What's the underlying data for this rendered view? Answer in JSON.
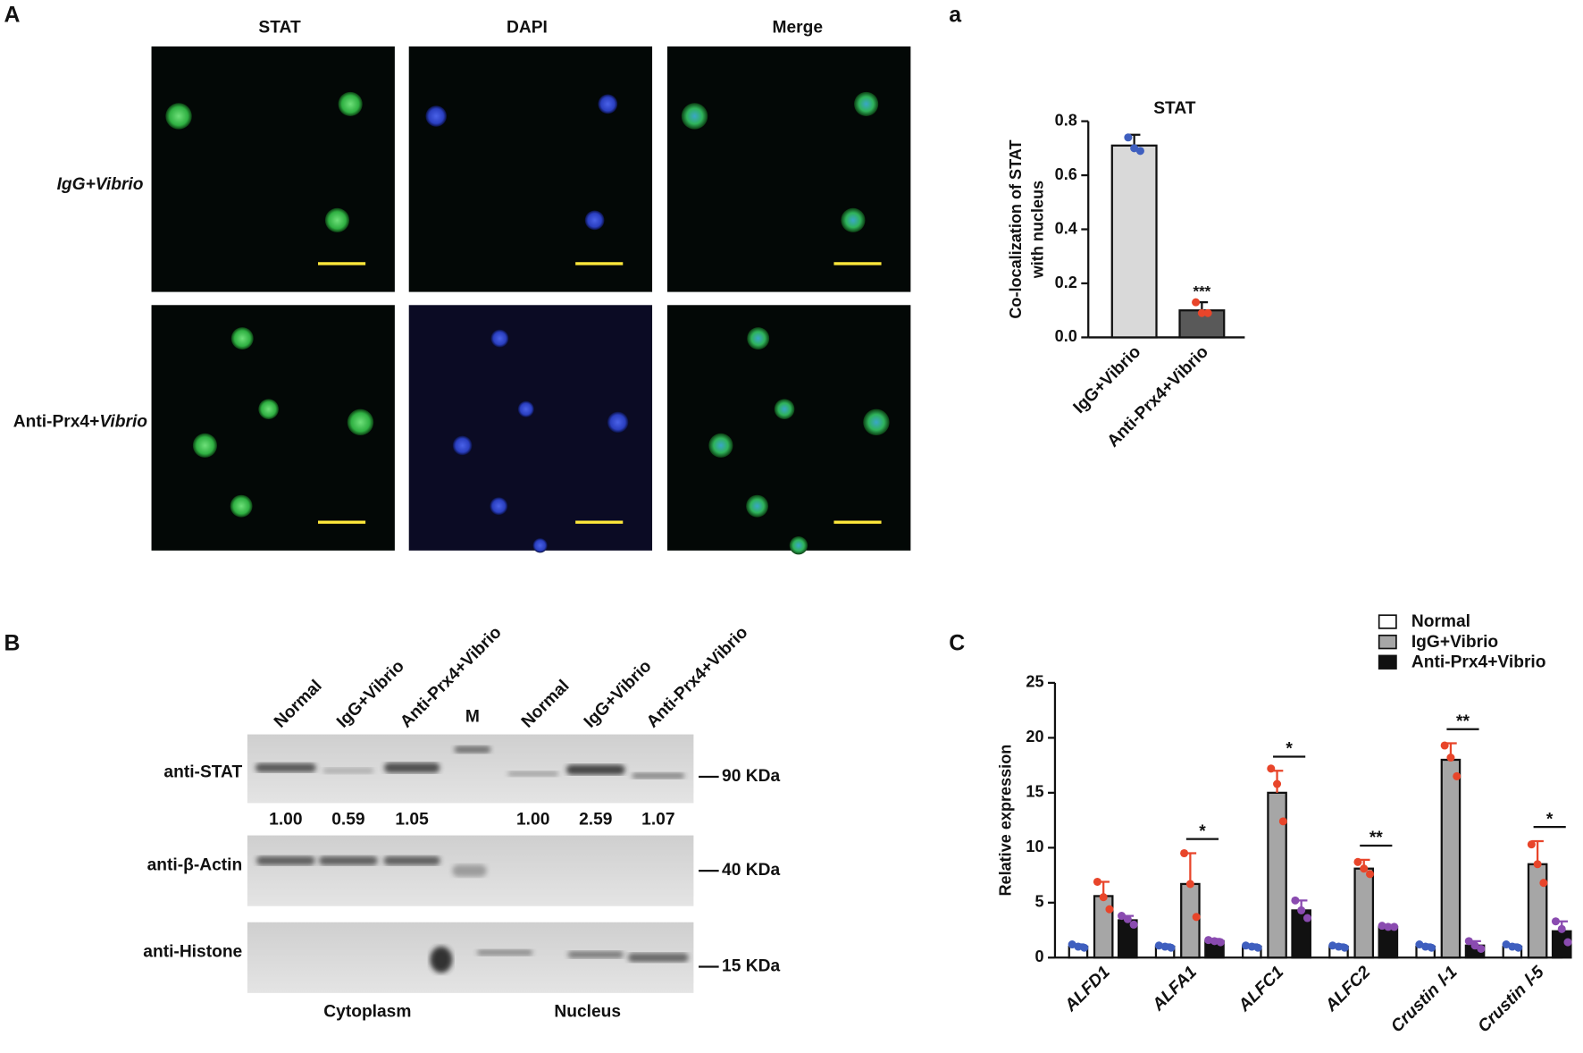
{
  "panel_labels": [
    "A",
    "a",
    "B",
    "C"
  ],
  "microscopy": {
    "columns": [
      "STAT",
      "DAPI",
      "Merge"
    ],
    "row_1": "IgG+Vibrio",
    "row_2": [
      "Anti-Prx4+",
      "Vibrio"
    ]
  },
  "blot": {
    "lanes": [
      "Normal",
      "IgG+Vibrio",
      "Anti-Prx4+Vibrio",
      "M",
      "Normal",
      "IgG+Vibrio",
      "Anti-Prx4+Vibrio"
    ],
    "rows": [
      "anti-STAT",
      "anti-β-Actin",
      "anti-Histone"
    ],
    "markers": [
      "90 KDa",
      "40 KDa",
      "15 KDa"
    ],
    "quantification": [
      "1.00",
      "0.59",
      "1.05",
      "1.00",
      "2.59",
      "1.07"
    ],
    "groups": [
      "Cytoplasm",
      "Nucleus"
    ]
  },
  "chart_data": [
    {
      "type": "bar",
      "title": "STAT",
      "y_label": [
        "Co-localization of STAT",
        "with nucleus"
      ],
      "categories": [
        "IgG+Vibrio",
        "Anti-Prx4+Vibrio"
      ],
      "values": [
        0.71,
        0.1
      ],
      "errors": [
        0.04,
        0.03
      ],
      "colors": [
        "#d9d9d9",
        "#595959"
      ],
      "points": [
        [
          0.74,
          0.7,
          0.69
        ],
        [
          0.13,
          0.09,
          0.09
        ]
      ],
      "point_colors": [
        "#3f5fbf",
        "#e8452a"
      ],
      "significance": [
        null,
        "***"
      ],
      "ylim": [
        0,
        0.8
      ],
      "yticks": [
        {
          "value": 0,
          "label": "0.0"
        },
        0.2,
        0.4,
        0.6,
        0.8
      ]
    },
    {
      "type": "grouped_bar",
      "y_label": "Relative expression",
      "categories": [
        "ALFD1",
        "ALFA1",
        "ALFC1",
        "ALFC2",
        "Crustin Ⅰ-1",
        "Crustin Ⅰ-5"
      ],
      "series": [
        {
          "name": "Normal",
          "color": "#ffffff",
          "point_color": "#3f5fbf",
          "values": [
            1.0,
            1.0,
            1.0,
            1.0,
            1.0,
            1.0
          ],
          "errors": [
            0.2,
            0.2,
            0.2,
            0.2,
            0.2,
            0.2
          ],
          "points": [
            [
              1.2,
              1.0,
              0.9
            ],
            [
              1.1,
              1.0,
              0.9
            ],
            [
              1.1,
              1.0,
              0.9
            ],
            [
              1.1,
              1.0,
              0.9
            ],
            [
              1.2,
              1.0,
              0.9
            ],
            [
              1.2,
              1.0,
              0.9
            ]
          ]
        },
        {
          "name": "IgG+Vibrio",
          "color": "#a6a6a6",
          "point_color": "#e8452a",
          "values": [
            5.6,
            6.7,
            15.0,
            8.1,
            18.0,
            8.5
          ],
          "errors": [
            1.3,
            2.8,
            2.0,
            0.8,
            1.5,
            2.1
          ],
          "points": [
            [
              6.9,
              5.5,
              4.4
            ],
            [
              9.5,
              6.7,
              3.7
            ],
            [
              17.2,
              15.8,
              12.4
            ],
            [
              8.7,
              8.1,
              7.6
            ],
            [
              19.3,
              18.2,
              16.5
            ],
            [
              10.3,
              8.5,
              6.8
            ]
          ]
        },
        {
          "name": "Anti-Prx4+Vibrio",
          "color": "#111111",
          "point_color": "#8a4bb0",
          "values": [
            3.4,
            1.5,
            4.3,
            2.8,
            1.1,
            2.4
          ],
          "errors": [
            0.4,
            0.2,
            0.9,
            0.1,
            0.4,
            0.9
          ],
          "points": [
            [
              3.8,
              3.5,
              3.0
            ],
            [
              1.6,
              1.5,
              1.4
            ],
            [
              5.2,
              4.3,
              3.6
            ],
            [
              2.9,
              2.8,
              2.8
            ],
            [
              1.5,
              1.1,
              0.8
            ],
            [
              3.3,
              2.6,
              1.4
            ]
          ]
        }
      ],
      "significance": [
        null,
        "*",
        "*",
        "**",
        "**",
        "*"
      ],
      "ylim": [
        0,
        25
      ],
      "yticks": [
        0,
        5,
        10,
        15,
        20,
        25
      ],
      "legend": "top-right"
    }
  ]
}
